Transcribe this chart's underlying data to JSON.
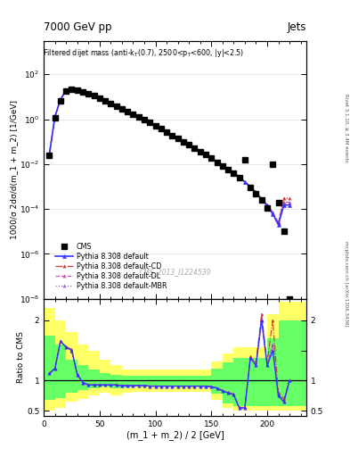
{
  "title_top": "7000 GeV pp",
  "title_right": "Jets",
  "xlabel": "(m_1 + m_2) / 2 [GeV]",
  "ylabel_main": "1000/σ 2dσ/d(m_1 + m_2) [1/GeV]",
  "ylabel_ratio": "Ratio to CMS",
  "cms_label": "CMS",
  "ref_label": "CMS_2013_I1224539",
  "rivet_label": "Rivet 3.1.10, ≥ 3.4M events",
  "mcplots_label": "mcplots.cern.ch [arXiv:1306.3436]",
  "xlim": [
    0,
    235
  ],
  "ylim_main": [
    1e-08,
    3000.0
  ],
  "ylim_ratio": [
    0.42,
    2.35
  ],
  "cms_x": [
    5,
    10,
    15,
    20,
    25,
    30,
    35,
    40,
    45,
    50,
    55,
    60,
    65,
    70,
    75,
    80,
    85,
    90,
    95,
    100,
    105,
    110,
    115,
    120,
    125,
    130,
    135,
    140,
    145,
    150,
    155,
    160,
    165,
    170,
    175,
    180,
    185,
    190,
    195,
    200,
    205,
    210,
    215,
    220
  ],
  "cms_y": [
    0.024,
    1.1,
    6.5,
    18.0,
    22.0,
    20.0,
    17.0,
    14.0,
    11.0,
    8.5,
    6.5,
    5.0,
    3.8,
    2.9,
    2.2,
    1.65,
    1.25,
    0.93,
    0.7,
    0.52,
    0.38,
    0.27,
    0.19,
    0.14,
    0.1,
    0.072,
    0.052,
    0.036,
    0.026,
    0.018,
    0.012,
    0.0085,
    0.0057,
    0.0038,
    0.0025,
    0.0155,
    0.0009,
    0.0005,
    0.00025,
    0.00011,
    0.0095,
    0.0002,
    1e-05,
    1e-08
  ],
  "py_x": [
    5,
    10,
    15,
    20,
    25,
    30,
    35,
    40,
    45,
    50,
    55,
    60,
    65,
    70,
    75,
    80,
    85,
    90,
    95,
    100,
    105,
    110,
    115,
    120,
    125,
    130,
    135,
    140,
    145,
    150,
    155,
    160,
    165,
    170,
    175,
    180,
    185,
    190,
    195,
    200,
    205,
    210,
    215,
    220
  ],
  "py_def": [
    0.027,
    1.3,
    7.5,
    20.0,
    23.5,
    21.0,
    17.5,
    14.5,
    11.5,
    9.0,
    6.8,
    5.2,
    4.0,
    3.0,
    2.3,
    1.72,
    1.3,
    0.97,
    0.73,
    0.54,
    0.4,
    0.285,
    0.202,
    0.147,
    0.106,
    0.076,
    0.055,
    0.038,
    0.027,
    0.0185,
    0.013,
    0.0088,
    0.0059,
    0.004,
    0.0027,
    0.0016,
    0.00095,
    0.00055,
    0.00028,
    0.00014,
    6e-05,
    2e-05,
    0.00015,
    0.00015
  ],
  "py_cd": [
    0.027,
    1.3,
    7.5,
    20.1,
    23.6,
    21.1,
    17.6,
    14.5,
    11.5,
    9.0,
    6.8,
    5.2,
    4.0,
    3.0,
    2.3,
    1.72,
    1.3,
    0.97,
    0.73,
    0.54,
    0.4,
    0.285,
    0.202,
    0.147,
    0.106,
    0.076,
    0.055,
    0.038,
    0.027,
    0.0185,
    0.013,
    0.0088,
    0.006,
    0.0041,
    0.00275,
    0.00165,
    0.00098,
    0.00058,
    0.0003,
    0.00015,
    7e-05,
    2.5e-05,
    0.0003,
    0.0003
  ],
  "py_dl": [
    0.027,
    1.3,
    7.5,
    20.0,
    23.5,
    21.0,
    17.5,
    14.5,
    11.5,
    9.0,
    6.8,
    5.2,
    4.0,
    3.0,
    2.3,
    1.72,
    1.3,
    0.97,
    0.73,
    0.54,
    0.4,
    0.285,
    0.202,
    0.147,
    0.106,
    0.076,
    0.055,
    0.038,
    0.027,
    0.0185,
    0.013,
    0.0088,
    0.0059,
    0.004,
    0.0027,
    0.0016,
    0.00095,
    0.00055,
    0.00028,
    0.00014,
    7e-05,
    2.3e-05,
    0.0002,
    0.0002
  ],
  "py_mbr": [
    0.027,
    1.3,
    7.5,
    20.0,
    23.5,
    21.0,
    17.5,
    14.5,
    11.5,
    9.0,
    6.8,
    5.2,
    4.0,
    3.0,
    2.3,
    1.72,
    1.3,
    0.97,
    0.73,
    0.54,
    0.4,
    0.285,
    0.202,
    0.147,
    0.106,
    0.076,
    0.055,
    0.038,
    0.027,
    0.0185,
    0.013,
    0.0088,
    0.0059,
    0.004,
    0.0027,
    0.0016,
    0.00095,
    0.00055,
    0.00028,
    0.00014,
    7e-05,
    2.3e-05,
    0.0002,
    0.0002
  ],
  "ratio_x": [
    5,
    10,
    15,
    20,
    25,
    30,
    35,
    40,
    45,
    50,
    55,
    60,
    65,
    70,
    75,
    80,
    85,
    90,
    95,
    100,
    105,
    110,
    115,
    120,
    125,
    130,
    135,
    140,
    145,
    150,
    155,
    160,
    165,
    170,
    175,
    180,
    185,
    190,
    195,
    200,
    205,
    210,
    215,
    220
  ],
  "ratio_def": [
    1.12,
    1.2,
    1.65,
    1.55,
    1.5,
    1.1,
    0.97,
    0.93,
    0.93,
    0.93,
    0.93,
    0.93,
    0.93,
    0.92,
    0.92,
    0.92,
    0.92,
    0.92,
    0.91,
    0.91,
    0.91,
    0.91,
    0.91,
    0.91,
    0.91,
    0.91,
    0.91,
    0.91,
    0.91,
    0.9,
    0.88,
    0.83,
    0.8,
    0.77,
    0.55,
    0.55,
    1.38,
    1.25,
    2.0,
    1.25,
    1.5,
    0.75,
    0.65,
    1.0
  ],
  "ratio_cd": [
    1.12,
    1.2,
    1.65,
    1.56,
    1.52,
    1.11,
    0.97,
    0.93,
    0.93,
    0.93,
    0.93,
    0.93,
    0.93,
    0.92,
    0.92,
    0.92,
    0.92,
    0.92,
    0.91,
    0.91,
    0.91,
    0.91,
    0.91,
    0.91,
    0.91,
    0.91,
    0.91,
    0.91,
    0.91,
    0.9,
    0.88,
    0.84,
    0.81,
    0.78,
    0.56,
    0.56,
    1.4,
    1.3,
    2.1,
    1.3,
    2.0,
    0.8,
    0.7,
    1.0
  ],
  "ratio_dl": [
    1.12,
    1.2,
    1.65,
    1.55,
    1.5,
    1.1,
    0.97,
    0.93,
    0.93,
    0.93,
    0.93,
    0.93,
    0.93,
    0.92,
    0.92,
    0.92,
    0.92,
    0.92,
    0.91,
    0.91,
    0.91,
    0.91,
    0.91,
    0.91,
    0.91,
    0.91,
    0.91,
    0.91,
    0.91,
    0.9,
    0.88,
    0.83,
    0.8,
    0.77,
    0.55,
    0.55,
    1.38,
    1.26,
    2.0,
    1.26,
    1.6,
    0.76,
    0.66,
    1.0
  ],
  "ratio_mbr": [
    1.12,
    1.2,
    1.65,
    1.55,
    1.5,
    1.1,
    0.97,
    0.93,
    0.93,
    0.93,
    0.93,
    0.93,
    0.93,
    0.92,
    0.92,
    0.92,
    0.92,
    0.92,
    0.91,
    0.91,
    0.91,
    0.91,
    0.91,
    0.91,
    0.91,
    0.91,
    0.91,
    0.91,
    0.91,
    0.9,
    0.88,
    0.83,
    0.8,
    0.77,
    0.55,
    0.55,
    1.38,
    1.26,
    2.0,
    1.26,
    1.6,
    0.76,
    0.66,
    1.0
  ],
  "band_x": [
    0,
    10,
    20,
    30,
    40,
    50,
    60,
    70,
    80,
    90,
    100,
    110,
    120,
    130,
    140,
    150,
    160,
    170,
    180,
    190,
    200,
    210,
    220,
    235
  ],
  "yellow_lo": [
    0.5,
    0.55,
    0.65,
    0.7,
    0.75,
    0.8,
    0.75,
    0.8,
    0.82,
    0.82,
    0.82,
    0.82,
    0.82,
    0.82,
    0.82,
    0.68,
    0.55,
    0.5,
    0.5,
    0.5,
    0.5,
    0.5,
    0.5,
    0.5
  ],
  "yellow_hi": [
    2.2,
    2.0,
    1.8,
    1.6,
    1.5,
    1.35,
    1.25,
    1.18,
    1.18,
    1.18,
    1.18,
    1.18,
    1.18,
    1.18,
    1.18,
    1.32,
    1.45,
    1.55,
    1.55,
    1.55,
    2.1,
    2.3,
    2.3,
    2.3
  ],
  "green_lo": [
    0.68,
    0.72,
    0.8,
    0.85,
    0.88,
    0.9,
    0.87,
    0.89,
    0.9,
    0.9,
    0.9,
    0.9,
    0.9,
    0.9,
    0.9,
    0.78,
    0.63,
    0.58,
    0.58,
    0.58,
    0.58,
    0.58,
    0.58,
    0.58
  ],
  "green_hi": [
    1.75,
    1.6,
    1.35,
    1.25,
    1.18,
    1.12,
    1.1,
    1.08,
    1.08,
    1.08,
    1.08,
    1.08,
    1.08,
    1.08,
    1.08,
    1.2,
    1.3,
    1.38,
    1.38,
    1.38,
    1.7,
    2.0,
    2.0,
    2.0
  ],
  "color_default": "#3333ff",
  "color_cd": "#cc2222",
  "color_dl": "#cc44aa",
  "color_mbr": "#9955cc",
  "color_yellow": "#ffff66",
  "color_green": "#66ff66",
  "bg_color": "#ffffff"
}
